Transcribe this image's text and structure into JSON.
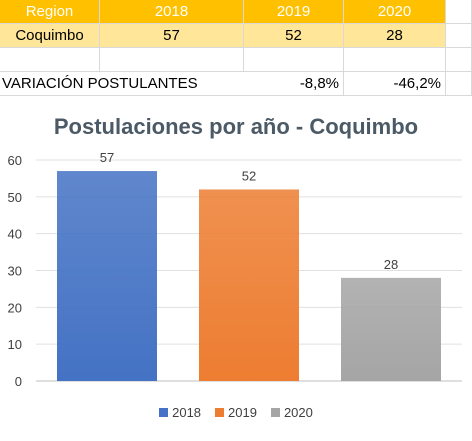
{
  "table": {
    "header": [
      "Region",
      "2018",
      "2019",
      "2020"
    ],
    "row": [
      "Coquimbo",
      "57",
      "52",
      "28"
    ],
    "variation": {
      "label": "VARIACIÓN POSTULANTES",
      "values": [
        "-8,8%",
        "-46,2%"
      ]
    }
  },
  "chart_data": {
    "type": "bar",
    "title": "Postulaciones por año - Coquimbo",
    "categories": [
      "2018",
      "2019",
      "2020"
    ],
    "values": [
      57,
      52,
      28
    ],
    "series": [
      {
        "name": "2018",
        "value": 57,
        "color": "#4472c4"
      },
      {
        "name": "2019",
        "value": 52,
        "color": "#ed7d31"
      },
      {
        "name": "2020",
        "value": 28,
        "color": "#a5a5a5"
      }
    ],
    "ylim": [
      0,
      60
    ],
    "yticks": [
      0,
      10,
      20,
      30,
      40,
      50,
      60
    ],
    "grid": true,
    "legend": "bottom"
  }
}
